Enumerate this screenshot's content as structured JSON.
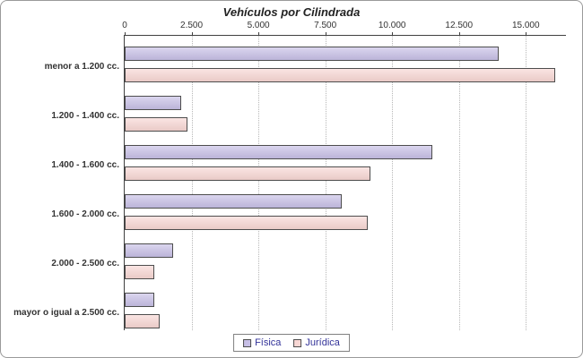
{
  "chart_data": {
    "type": "bar",
    "orientation": "horizontal",
    "title": "Vehículos por Cilindrada",
    "categories": [
      "menor a 1.200 cc.",
      "1.200 - 1.400 cc.",
      "1.400 - 1.600 cc.",
      "1.600 - 2.000 cc.",
      "2.000 - 2.500 cc.",
      "mayor o igual a 2.500 cc."
    ],
    "series": [
      {
        "name": "Física",
        "key": "fisica",
        "color": "#C7BFE6",
        "values": [
          14000,
          2100,
          11500,
          8100,
          1800,
          1100
        ]
      },
      {
        "name": "Jurídica",
        "key": "juridica",
        "color": "#F8D7D4",
        "values": [
          16100,
          2350,
          9200,
          9100,
          1100,
          1300
        ]
      }
    ],
    "x_ticks": [
      "0",
      "2.500",
      "5.000",
      "7.500",
      "10.000",
      "12.500",
      "15.000"
    ],
    "x_tick_values": [
      0,
      2500,
      5000,
      7500,
      10000,
      12500,
      15000
    ],
    "xlim": [
      0,
      16500
    ],
    "grid": true,
    "legend_position": "bottom",
    "colors": {
      "axis": "#404040",
      "gridline": "#b8b8b8",
      "bar_border": "#4d4d4d",
      "legend_text": "#333399"
    }
  }
}
